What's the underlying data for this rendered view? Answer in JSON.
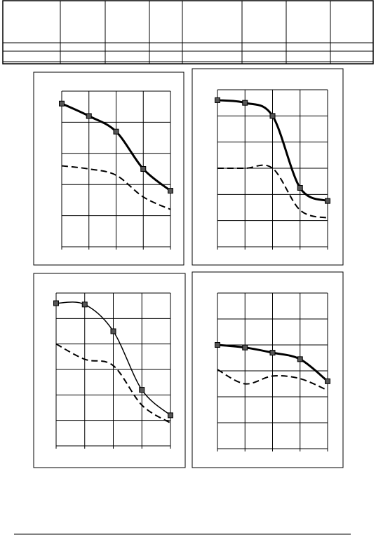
{
  "chart_data": [
    {
      "type": "line",
      "x": [
        0,
        1,
        2,
        3,
        4
      ],
      "xlim": [
        0,
        4
      ],
      "xticks": [
        0,
        1,
        2,
        3,
        4
      ],
      "ylim": [
        0,
        5
      ],
      "yticks": [
        0,
        1,
        2,
        3,
        4,
        5
      ],
      "grid": true,
      "series": [
        {
          "color": "#000000",
          "style": "solid",
          "width": 3,
          "markers": true,
          "values": [
            4.6,
            4.2,
            3.7,
            2.5,
            1.8
          ]
        },
        {
          "color": "#000000",
          "style": "dashed",
          "width": 2,
          "markers": false,
          "values": [
            2.6,
            2.5,
            2.3,
            1.6,
            1.2
          ]
        }
      ]
    },
    {
      "type": "line",
      "x": [
        0,
        1,
        2,
        3,
        4
      ],
      "xlim": [
        0,
        4
      ],
      "xticks": [
        0,
        1,
        2,
        3,
        4
      ],
      "ylim": [
        0,
        6
      ],
      "yticks": [
        0,
        1,
        2,
        3,
        4,
        5,
        6
      ],
      "grid": true,
      "series": [
        {
          "color": "#000000",
          "style": "solid",
          "width": 3,
          "markers": true,
          "values": [
            5.6,
            5.5,
            5.0,
            2.25,
            1.75
          ]
        },
        {
          "color": "#000000",
          "style": "dashed",
          "width": 2,
          "markers": false,
          "values": [
            3.0,
            3.0,
            3.0,
            1.4,
            1.1
          ]
        }
      ]
    },
    {
      "type": "line",
      "x": [
        0,
        1,
        2,
        3,
        4
      ],
      "xlim": [
        0,
        4
      ],
      "xticks": [
        0,
        1,
        2,
        3,
        4
      ],
      "ylim": [
        0,
        6
      ],
      "yticks": [
        0,
        1,
        2,
        3,
        4,
        5,
        6
      ],
      "grid": true,
      "series": [
        {
          "color": "#000000",
          "style": "solid",
          "width": 1.5,
          "markers": true,
          "values": [
            5.6,
            5.55,
            4.5,
            2.2,
            1.2
          ]
        },
        {
          "color": "#000000",
          "style": "dashed",
          "width": 2,
          "markers": false,
          "values": [
            4.0,
            3.4,
            3.15,
            1.6,
            0.9
          ]
        }
      ]
    },
    {
      "type": "line",
      "x": [
        0,
        1,
        2,
        3,
        4
      ],
      "xlim": [
        0,
        4
      ],
      "xticks": [
        0,
        1,
        2,
        3,
        4
      ],
      "ylim": [
        0,
        6
      ],
      "yticks": [
        0,
        1,
        2,
        3,
        4,
        5,
        6
      ],
      "grid": true,
      "series": [
        {
          "color": "#000000",
          "style": "solid",
          "width": 3,
          "markers": true,
          "values": [
            4.0,
            3.9,
            3.7,
            3.45,
            2.6
          ]
        },
        {
          "color": "#000000",
          "style": "dashed",
          "width": 2,
          "markers": false,
          "values": [
            3.05,
            2.5,
            2.8,
            2.7,
            2.25
          ]
        }
      ]
    }
  ]
}
